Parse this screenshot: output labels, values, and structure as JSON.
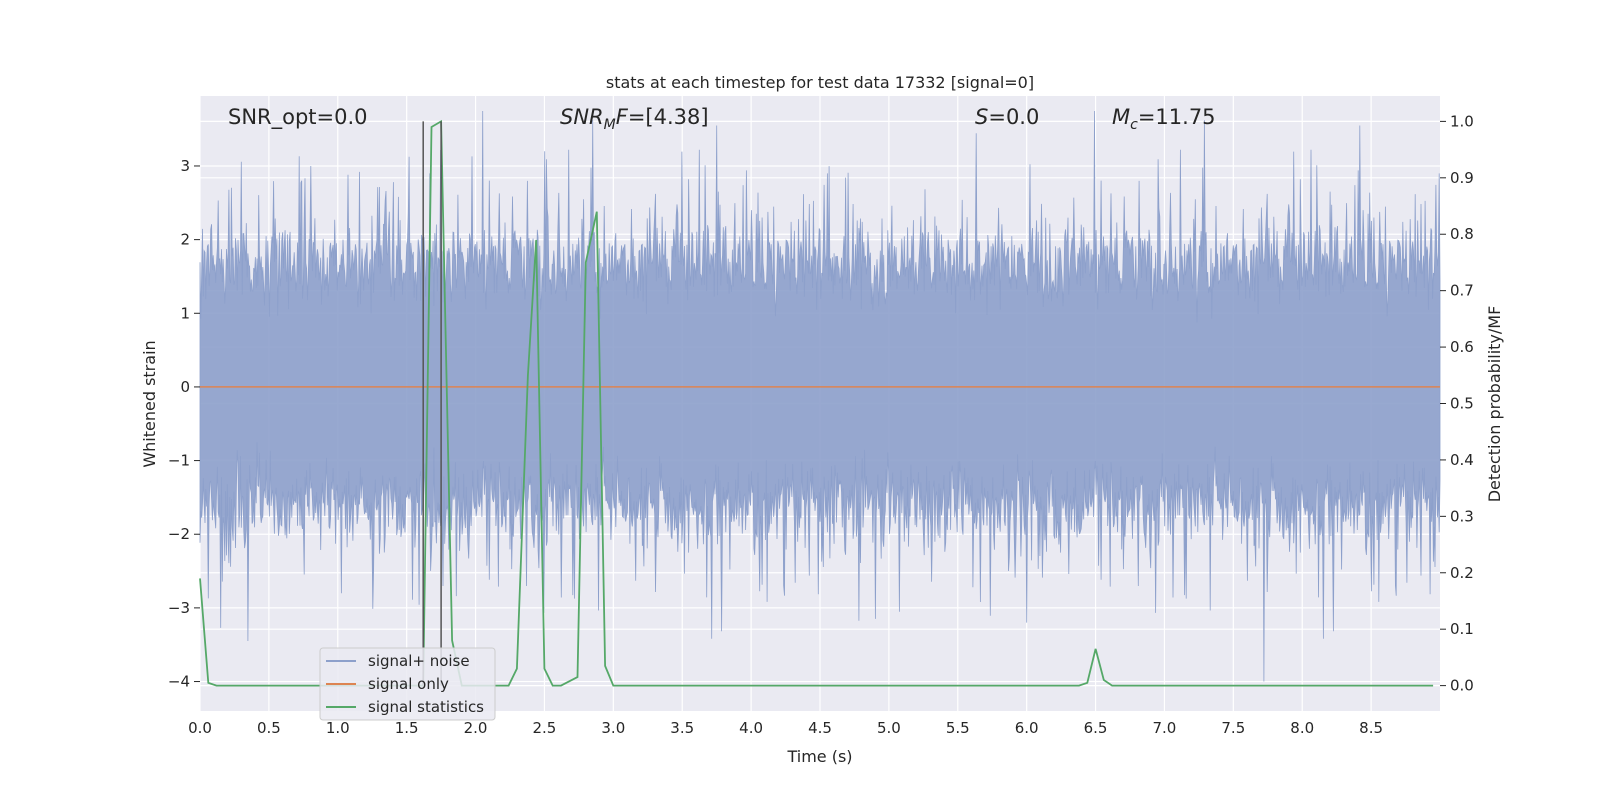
{
  "chart_data": {
    "type": "line",
    "title": "stats at each timestep for test data 17332 [signal=0]",
    "xlabel": "Time (s)",
    "ylabel": "Whitened strain",
    "y2label": "Detection probability/MF",
    "xlim": [
      0.0,
      9.0
    ],
    "ylim": [
      -4.4,
      3.95
    ],
    "y2lim": [
      -0.045,
      1.045
    ],
    "xticks": [
      0.0,
      0.5,
      1.0,
      1.5,
      2.0,
      2.5,
      3.0,
      3.5,
      4.0,
      4.5,
      5.0,
      5.5,
      6.0,
      6.5,
      7.0,
      7.5,
      8.0,
      8.5
    ],
    "xtick_labels": [
      "0.0",
      "0.5",
      "1.0",
      "1.5",
      "2.0",
      "2.5",
      "3.0",
      "3.5",
      "4.0",
      "4.5",
      "5.0",
      "5.5",
      "6.0",
      "6.5",
      "7.0",
      "7.5",
      "8.0",
      "8.5"
    ],
    "yticks": [
      3,
      2,
      1,
      0,
      -1,
      -2,
      -3,
      -4
    ],
    "ytick_labels": [
      "3",
      "2",
      "1",
      "0",
      "−1",
      "−2",
      "−3",
      "−4"
    ],
    "y2ticks": [
      1.0,
      0.9,
      0.8,
      0.7,
      0.6,
      0.5,
      0.4,
      0.3,
      0.2,
      0.1,
      0.0
    ],
    "y2tick_labels": [
      "1.0",
      "0.9",
      "0.8",
      "0.7",
      "0.6",
      "0.5",
      "0.4",
      "0.3",
      "0.2",
      "0.1",
      "0.0"
    ],
    "grid": true,
    "legend_placement": "lower-left",
    "annotations": [
      {
        "text": "SNR_opt=0.0",
        "x": 0.2
      },
      {
        "text": "SNR_MF=[4.38]",
        "x": 2.6
      },
      {
        "text": "S=0.0",
        "x": 5.6
      },
      {
        "text": "M_c=11.75",
        "x": 6.6
      }
    ],
    "vlines": [
      1.62,
      1.75
    ],
    "series": [
      {
        "name": "signal+ noise",
        "color": "#8da0cb",
        "axis": "left",
        "envelope_note": "dense noise trace",
        "upper_typical": 1.7,
        "lower_typical": -1.6,
        "peaks": [
          {
            "x": 0.35,
            "y": -3.45
          },
          {
            "x": 2.5,
            "y": 3.2
          },
          {
            "x": 3.75,
            "y": 3.55
          },
          {
            "x": 4.9,
            "y": -3.15
          },
          {
            "x": 6.0,
            "y": -3.2
          },
          {
            "x": 7.72,
            "y": -4.0
          },
          {
            "x": 8.42,
            "y": 3.55
          }
        ]
      },
      {
        "name": "signal only",
        "color": "#dd8452",
        "axis": "left",
        "x": [
          0.0,
          9.0
        ],
        "y": [
          0.0,
          0.0
        ]
      },
      {
        "name": "signal statistics",
        "color": "#55a868",
        "axis": "right",
        "x": [
          0.0,
          0.06,
          0.12,
          1.56,
          1.6,
          1.62,
          1.68,
          1.75,
          1.83,
          1.9,
          2.24,
          2.3,
          2.38,
          2.44,
          2.5,
          2.56,
          2.62,
          2.74,
          2.8,
          2.88,
          2.94,
          3.0,
          6.38,
          6.44,
          6.5,
          6.56,
          6.62,
          8.95
        ],
        "y": [
          0.19,
          0.005,
          0.0,
          0.0,
          0.0,
          0.0,
          0.99,
          1.0,
          0.08,
          0.0,
          0.0,
          0.03,
          0.55,
          0.79,
          0.03,
          0.0,
          0.0,
          0.015,
          0.75,
          0.84,
          0.035,
          0.0,
          0.0,
          0.005,
          0.065,
          0.01,
          0.0,
          0.0
        ]
      }
    ]
  }
}
